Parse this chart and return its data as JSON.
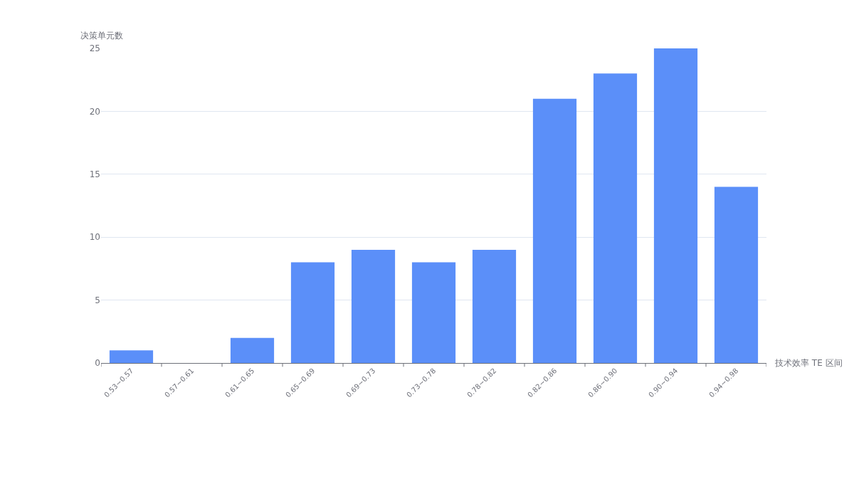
{
  "chart_data": {
    "type": "bar",
    "xlabel": "技术效率 TE 区间",
    "ylabel": "决策单元数",
    "categories": [
      "0.53~0.57",
      "0.57~0.61",
      "0.61~0.65",
      "0.65~0.69",
      "0.69~0.73",
      "0.73~0.78",
      "0.78~0.82",
      "0.82~0.86",
      "0.86~0.90",
      "0.90~0.94",
      "0.94~0.98"
    ],
    "values": [
      1,
      0,
      2,
      8,
      9,
      8,
      9,
      21,
      23,
      25,
      14
    ],
    "color": "#5b8ff9",
    "ylim": [
      0,
      25
    ],
    "yticks": [
      0,
      5,
      10,
      15,
      20,
      25
    ],
    "grid": "y"
  }
}
